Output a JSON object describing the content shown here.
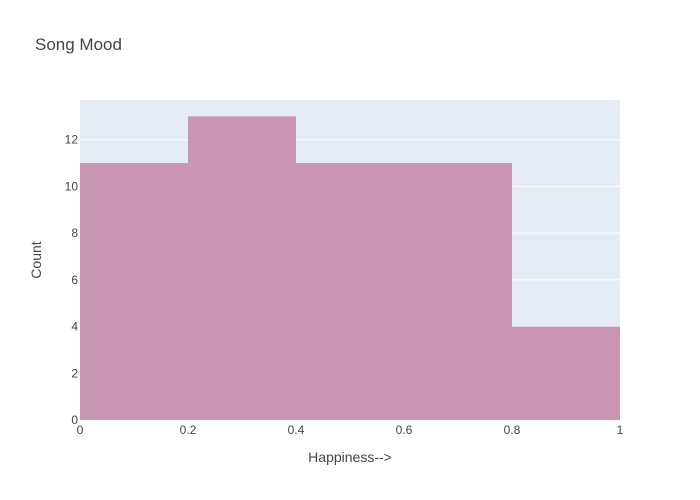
{
  "chart_data": {
    "type": "bar",
    "title": "Song Mood",
    "xlabel": "Happiness-->",
    "ylabel": "Count",
    "bin_edges": [
      0,
      0.2,
      0.4,
      0.6,
      0.8,
      1
    ],
    "values": [
      11,
      13,
      11,
      11,
      4
    ],
    "xlim": [
      0,
      1
    ],
    "ylim": [
      0,
      13.7
    ],
    "x_ticks": [
      0,
      0.2,
      0.4,
      0.6,
      0.8,
      1
    ],
    "x_tick_labels": [
      "0",
      "0.2",
      "0.4",
      "0.6",
      "0.8",
      "1"
    ],
    "y_ticks": [
      0,
      2,
      4,
      6,
      8,
      10,
      12
    ],
    "y_tick_labels": [
      "0",
      "2",
      "4",
      "6",
      "8",
      "10",
      "12"
    ],
    "grid": true,
    "legend": "none",
    "colors": {
      "bar": "#c997b3",
      "plot_background": "#e5ecf6",
      "grid": "#ffffff",
      "text": "#444444"
    }
  }
}
